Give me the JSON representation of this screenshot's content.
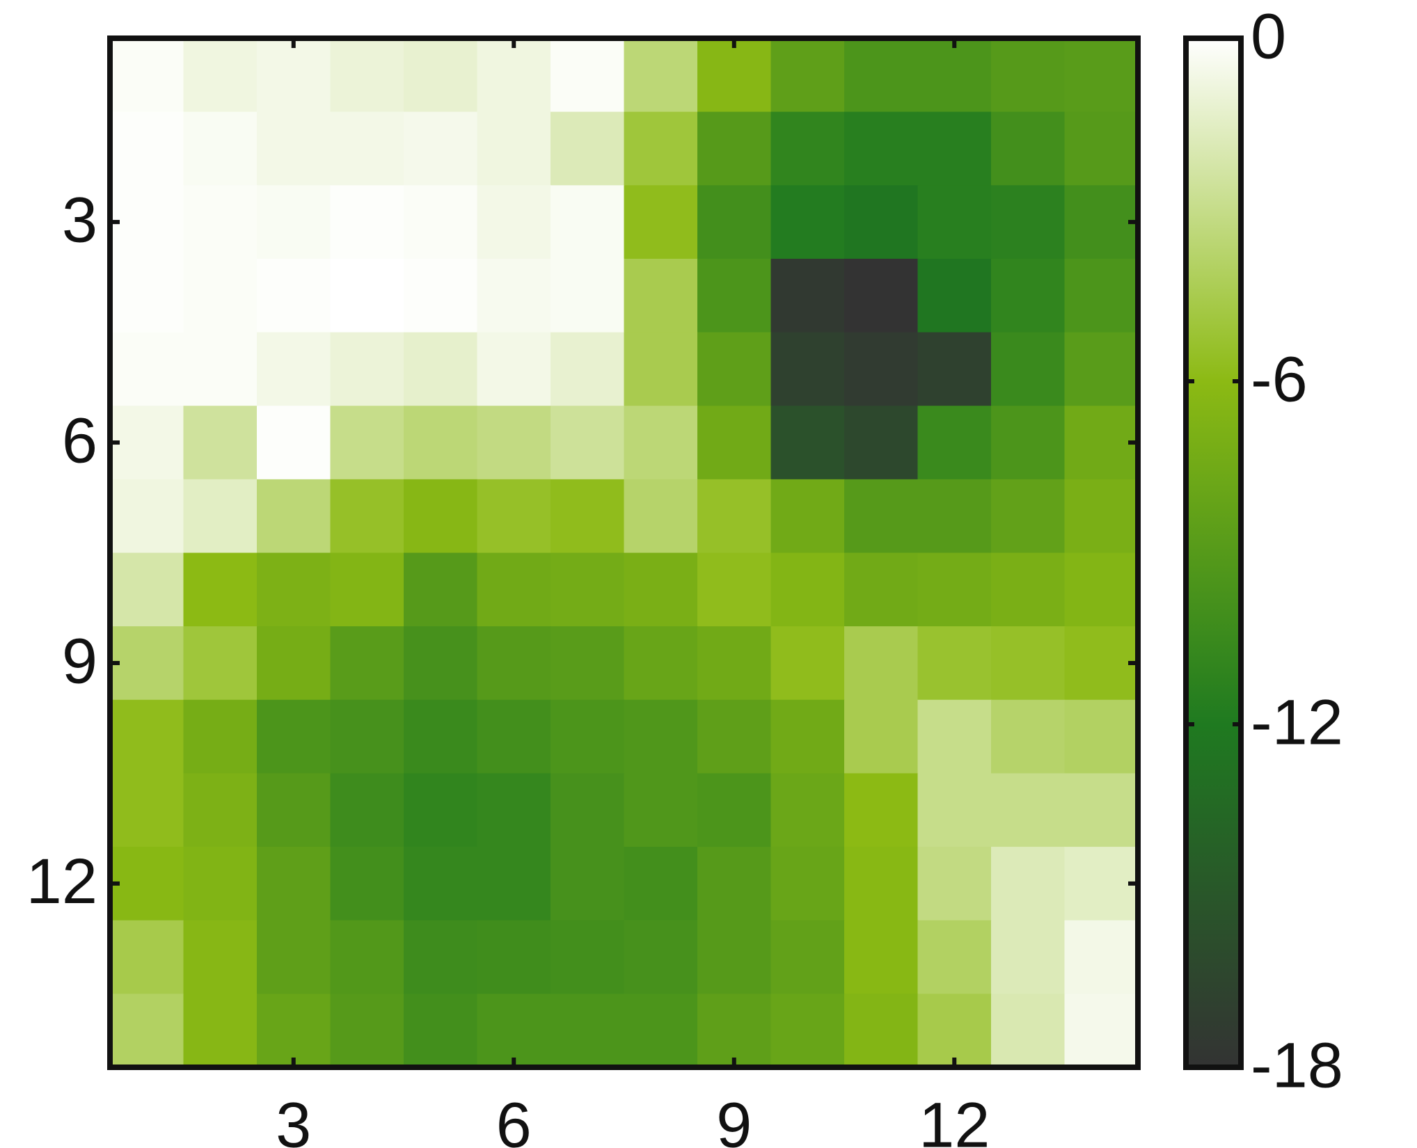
{
  "chart_data": {
    "type": "heatmap",
    "x": [
      1,
      2,
      3,
      4,
      5,
      6,
      7,
      8,
      9,
      10,
      11,
      12,
      13,
      14
    ],
    "y": [
      1,
      2,
      3,
      4,
      5,
      6,
      7,
      8,
      9,
      10,
      11,
      12,
      13,
      14
    ],
    "values": [
      [
        -0.2,
        -0.8,
        -0.6,
        -1,
        -1.2,
        -0.8,
        -0.2,
        -3.5,
        -6.3,
        -8.5,
        -9.5,
        -9.5,
        -9,
        -8.8
      ],
      [
        -0.1,
        -0.3,
        -0.6,
        -0.6,
        -0.5,
        -0.8,
        -1.8,
        -5,
        -9,
        -11,
        -11.5,
        -11.5,
        -10,
        -9
      ],
      [
        -0.1,
        -0.2,
        -0.3,
        -0.1,
        -0.2,
        -0.6,
        -0.3,
        -5.8,
        -10,
        -11.8,
        -12.3,
        -11.5,
        -11.3,
        -10
      ],
      [
        -0.1,
        -0.2,
        -0.1,
        0,
        -0.1,
        -0.4,
        -0.3,
        -4.5,
        -9.5,
        -17.5,
        -18,
        -12.3,
        -11,
        -9.5
      ],
      [
        -0.2,
        -0.2,
        -0.6,
        -1,
        -1.3,
        -0.6,
        -1.2,
        -4.5,
        -8.5,
        -16.8,
        -17.3,
        -16.8,
        -10.5,
        -8.8
      ],
      [
        -0.6,
        -2.5,
        -0.1,
        -3,
        -3.5,
        -3.2,
        -2.6,
        -3.5,
        -7.5,
        -15.5,
        -16.2,
        -10.5,
        -9.5,
        -7.5
      ],
      [
        -0.8,
        -1.5,
        -3.5,
        -5.5,
        -6.3,
        -5.5,
        -5.8,
        -3.8,
        -5.5,
        -7.5,
        -9,
        -9,
        -8.3,
        -7
      ],
      [
        -2.2,
        -6,
        -6.8,
        -6.5,
        -9,
        -7.5,
        -7.3,
        -7,
        -5.8,
        -6.5,
        -7.5,
        -7.3,
        -7,
        -6.5
      ],
      [
        -3.8,
        -5,
        -7.2,
        -8.8,
        -9.8,
        -9,
        -8.8,
        -8,
        -7.5,
        -5.8,
        -4.5,
        -5.3,
        -5.5,
        -5.8
      ],
      [
        -5.8,
        -7.2,
        -9.5,
        -9.8,
        -10.5,
        -10,
        -9.5,
        -9.3,
        -8.5,
        -7.5,
        -4.5,
        -3,
        -3.8,
        -4
      ],
      [
        -5.8,
        -6.8,
        -9,
        -10.3,
        -11,
        -10.8,
        -9.8,
        -9.3,
        -9.5,
        -7.8,
        -6,
        -3,
        -3,
        -3
      ],
      [
        -6.2,
        -6.6,
        -8.5,
        -10,
        -10.8,
        -10.8,
        -9.8,
        -10,
        -9,
        -8,
        -6.2,
        -3.2,
        -1.8,
        -1.5
      ],
      [
        -4.6,
        -6.3,
        -8.5,
        -9.2,
        -10.3,
        -10.2,
        -10,
        -9.8,
        -9,
        -8.3,
        -6.2,
        -4,
        -1.8,
        -0.6
      ],
      [
        -4,
        -6.3,
        -8,
        -9,
        -10,
        -9.5,
        -9.5,
        -9.5,
        -8.5,
        -8,
        -6.5,
        -4.6,
        -2,
        -0.5
      ]
    ],
    "xlim": [
      0.5,
      14.5
    ],
    "ylim": [
      14.5,
      0.5
    ],
    "xticks": [
      3,
      6,
      9,
      12
    ],
    "yticks": [
      3,
      6,
      9,
      12
    ],
    "zlim": [
      -18,
      0
    ],
    "zticks": [
      0,
      -6,
      -12,
      -18
    ],
    "colormap": [
      "#333333",
      "#1f7a20",
      "#8cba14",
      "#ffffff"
    ]
  }
}
